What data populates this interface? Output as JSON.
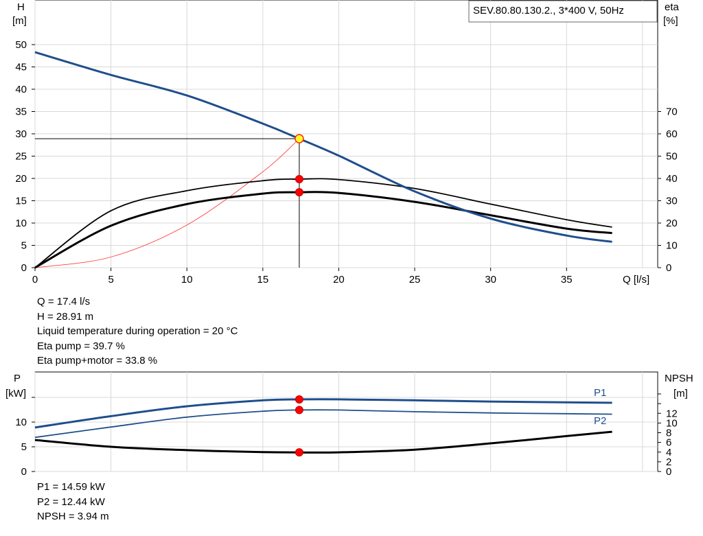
{
  "chart_data": [
    {
      "type": "line",
      "title": "SEV.80.80.130.2., 3*400 V, 50Hz",
      "xlabel": "Q [l/s]",
      "ylabel": "H",
      "ylabel_unit": "[m]",
      "y2label": "eta",
      "y2label_unit": "[%]",
      "xlim": [
        0,
        41
      ],
      "ylim": [
        0,
        50
      ],
      "y2lim": [
        0,
        100
      ],
      "xticks": [
        0,
        5,
        10,
        15,
        20,
        25,
        30,
        35
      ],
      "yticks": [
        0,
        5,
        10,
        15,
        20,
        25,
        30,
        35,
        40,
        45,
        50
      ],
      "y2ticks": [
        0,
        10,
        20,
        30,
        40,
        50,
        60,
        70
      ],
      "grid": true,
      "series": [
        {
          "key": "H",
          "color": "#1f4e8c",
          "x": [
            0,
            5,
            10,
            15,
            17.4,
            20,
            25,
            30,
            35,
            38
          ],
          "y": [
            48.3,
            43.2,
            38.6,
            32.3,
            28.91,
            25.1,
            17.1,
            11.0,
            7.2,
            5.8
          ]
        },
        {
          "key": "eta_pump",
          "color": "#000000",
          "x": [
            0,
            5,
            10,
            15,
            17.4,
            20,
            25,
            30,
            35,
            38
          ],
          "y": [
            0,
            25.5,
            34.5,
            39.0,
            39.7,
            39.5,
            35.5,
            28.5,
            21.5,
            18.2
          ]
        },
        {
          "key": "eta_pump_motor",
          "color": "#000000",
          "x": [
            0,
            5,
            10,
            15,
            17.4,
            20,
            25,
            30,
            35,
            38
          ],
          "y": [
            0,
            18.8,
            28.5,
            33.2,
            33.8,
            33.5,
            29.5,
            23.5,
            17.5,
            15.5
          ]
        },
        {
          "key": "system_curve",
          "color": "#ff4040",
          "x": [
            0,
            5,
            10,
            15,
            17.4
          ],
          "y": [
            0,
            2.39,
            9.55,
            21.5,
            28.91
          ]
        }
      ],
      "operating_point": {
        "q": 17.4,
        "h": 28.91,
        "eta_pump": 39.7,
        "eta_pump_motor": 33.8
      }
    },
    {
      "type": "line",
      "ylabel": "P",
      "ylabel_unit": "[kW]",
      "y2label": "NPSH",
      "y2label_unit": "[m]",
      "xlim": [
        0,
        41
      ],
      "ylim": [
        0,
        15
      ],
      "y2lim": [
        0,
        16
      ],
      "yticks": [
        0,
        5,
        10
      ],
      "y2ticks": [
        0,
        2,
        4,
        6,
        8,
        10,
        12
      ],
      "grid": true,
      "series": [
        {
          "key": "P1",
          "name": "P1",
          "color": "#1f4e8c",
          "x": [
            0,
            5,
            10,
            15,
            17.4,
            20,
            25,
            30,
            35,
            38
          ],
          "y": [
            8.9,
            11.2,
            13.2,
            14.4,
            14.59,
            14.6,
            14.4,
            14.15,
            14.0,
            13.9
          ]
        },
        {
          "key": "P2",
          "name": "P2",
          "color": "#1f4e8c",
          "x": [
            0,
            5,
            10,
            15,
            17.4,
            20,
            25,
            30,
            35,
            38
          ],
          "y": [
            6.9,
            9.0,
            11.0,
            12.2,
            12.44,
            12.45,
            12.1,
            11.85,
            11.7,
            11.6
          ]
        },
        {
          "key": "NPSH",
          "color": "#000000",
          "x": [
            0,
            5,
            10,
            15,
            17.4,
            20,
            25,
            30,
            35,
            38
          ],
          "y": [
            6.5,
            5.1,
            4.4,
            4.0,
            3.94,
            3.95,
            4.5,
            5.8,
            7.3,
            8.2
          ]
        }
      ],
      "operating_point": {
        "q": 17.4,
        "p1": 14.59,
        "p2": 12.44,
        "npsh": 3.94
      }
    }
  ],
  "info_top": [
    "Q = 17.4 l/s",
    "H = 28.91 m",
    "Liquid temperature during operation = 20 °C",
    "Eta pump = 39.7 %",
    "Eta pump+motor = 33.8 %"
  ],
  "info_bottom": [
    "P1 = 14.59 kW",
    "P2 = 12.44 kW",
    "NPSH = 3.94 m"
  ]
}
